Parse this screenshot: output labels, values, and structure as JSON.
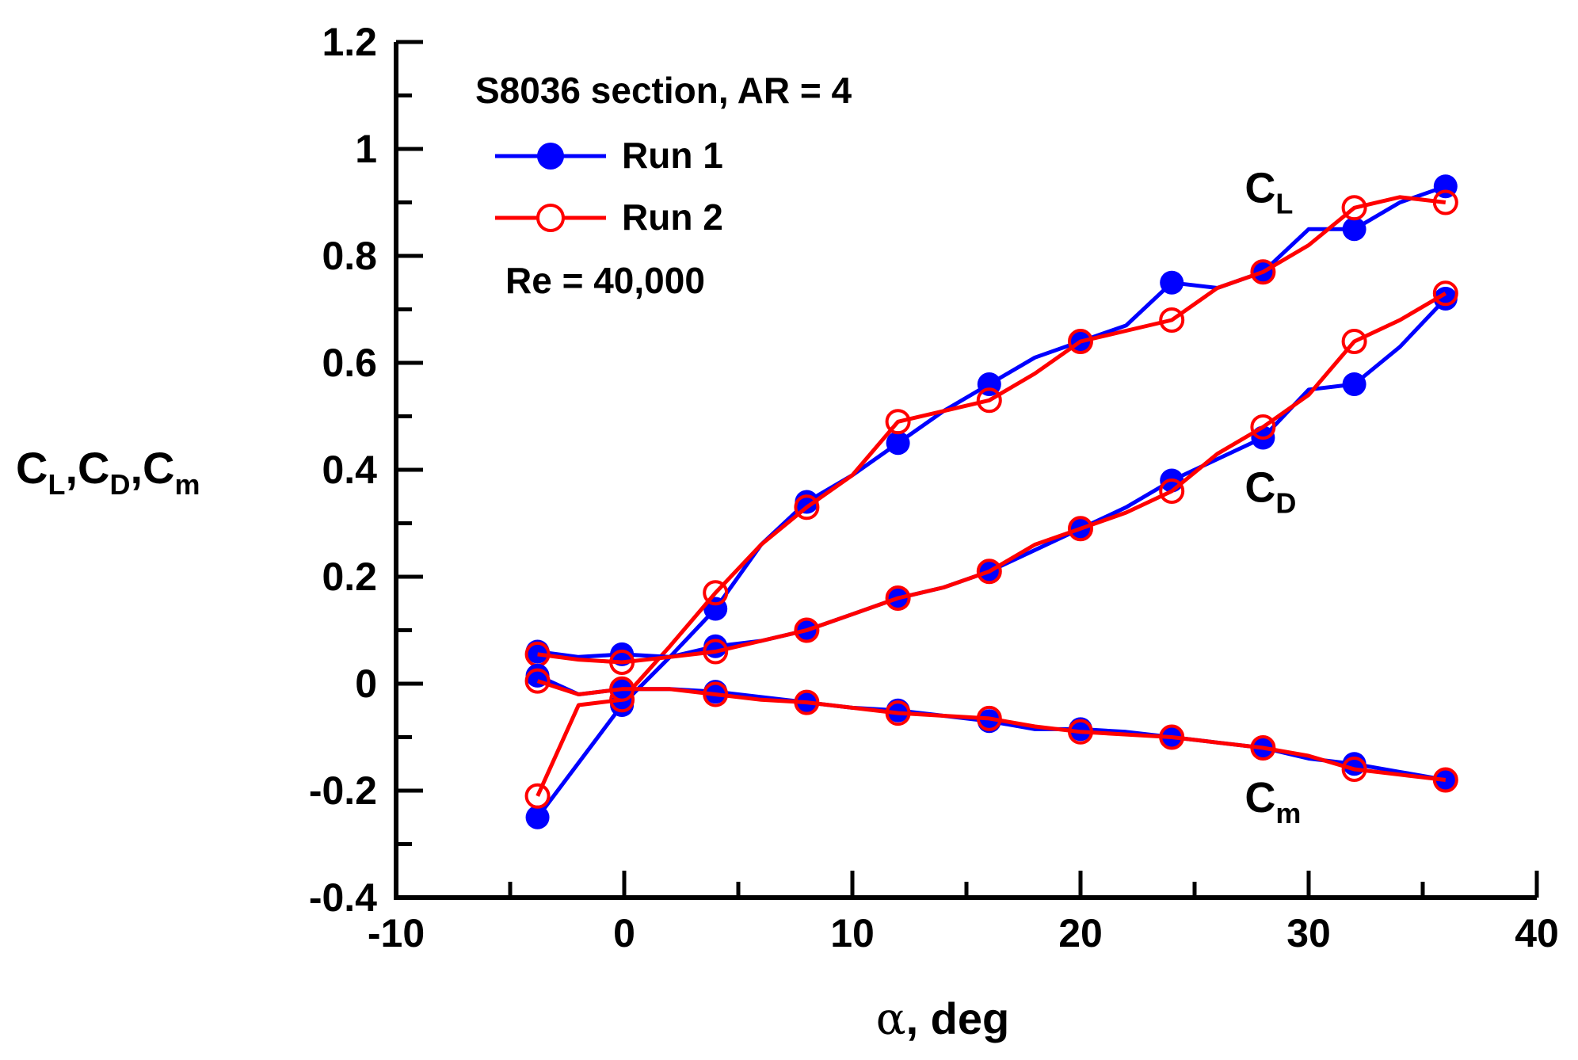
{
  "chart_data": {
    "type": "line",
    "title": "S8036 section, AR = 4",
    "annotation": "Re = 40,000",
    "xlabel_symbol": "α",
    "xlabel_text": ", deg",
    "ylabel_parts": [
      {
        "base": "C",
        "sub": "L",
        "sep": ","
      },
      {
        "base": "C",
        "sub": "D",
        "sep": ","
      },
      {
        "base": "C",
        "sub": "m",
        "sep": ""
      }
    ],
    "xlim": [
      -10,
      40
    ],
    "ylim": [
      -0.4,
      1.2
    ],
    "xticks": [
      -10,
      0,
      10,
      20,
      30,
      40
    ],
    "xtick_labels": [
      "-10",
      "0",
      "10",
      "20",
      "30",
      "40"
    ],
    "yticks": [
      -0.4,
      -0.2,
      0,
      0.2,
      0.4,
      0.6,
      0.8,
      1.0,
      1.2
    ],
    "ytick_labels": [
      "-0.4",
      "-0.2",
      "0",
      "0.2",
      "0.4",
      "0.6",
      "0.8",
      "1",
      "1.2"
    ],
    "legend": [
      {
        "name": "Run 1",
        "color": "#0000ff",
        "marker": "filled-circle"
      },
      {
        "name": "Run 2",
        "color": "#ff0000",
        "marker": "open-circle"
      }
    ],
    "curve_labels": [
      {
        "base": "C",
        "sub": "L",
        "x": 27.2,
        "y": 0.9
      },
      {
        "base": "C",
        "sub": "D",
        "x": 27.2,
        "y": 0.34
      },
      {
        "base": "C",
        "sub": "m",
        "x": 27.2,
        "y": -0.24
      }
    ],
    "series": [
      {
        "name": "Run 1",
        "coefficient": "CL",
        "color": "#0000ff",
        "marker": "filled",
        "line_x": [
          -3.8,
          -0.1,
          2,
          4,
          6,
          8,
          10,
          12,
          14,
          16,
          18,
          20,
          22,
          24,
          26,
          28,
          30,
          32,
          34,
          36
        ],
        "line_y": [
          -0.25,
          -0.04,
          0.05,
          0.14,
          0.26,
          0.34,
          0.39,
          0.45,
          0.51,
          0.56,
          0.61,
          0.64,
          0.67,
          0.75,
          0.74,
          0.77,
          0.85,
          0.85,
          0.9,
          0.93
        ],
        "marker_x": [
          -3.8,
          -0.1,
          4,
          8,
          12,
          16,
          20,
          24,
          28,
          32,
          36
        ],
        "marker_y": [
          -0.25,
          -0.04,
          0.14,
          0.34,
          0.45,
          0.56,
          0.64,
          0.75,
          0.77,
          0.85,
          0.93
        ]
      },
      {
        "name": "Run 2",
        "coefficient": "CL",
        "color": "#ff0000",
        "marker": "open",
        "line_x": [
          -3.8,
          -2,
          -0.1,
          2,
          4,
          6,
          8,
          10,
          12,
          14,
          16,
          18,
          20,
          22,
          24,
          26,
          28,
          30,
          32,
          34,
          36
        ],
        "line_y": [
          -0.21,
          -0.04,
          -0.03,
          0.07,
          0.17,
          0.26,
          0.33,
          0.39,
          0.49,
          0.51,
          0.53,
          0.58,
          0.64,
          0.66,
          0.68,
          0.74,
          0.77,
          0.82,
          0.89,
          0.91,
          0.9
        ],
        "marker_x": [
          -3.8,
          -0.1,
          4,
          8,
          12,
          16,
          20,
          24,
          28,
          32,
          36
        ],
        "marker_y": [
          -0.21,
          -0.03,
          0.17,
          0.33,
          0.49,
          0.53,
          0.64,
          0.68,
          0.77,
          0.89,
          0.9
        ]
      },
      {
        "name": "Run 1",
        "coefficient": "CD",
        "color": "#0000ff",
        "marker": "filled",
        "line_x": [
          -3.8,
          -2,
          -0.1,
          2,
          4,
          6,
          8,
          10,
          12,
          14,
          16,
          18,
          20,
          22,
          24,
          26,
          28,
          30,
          32,
          34,
          36
        ],
        "line_y": [
          0.06,
          0.05,
          0.055,
          0.05,
          0.07,
          0.08,
          0.1,
          0.13,
          0.16,
          0.18,
          0.21,
          0.25,
          0.29,
          0.33,
          0.38,
          0.42,
          0.46,
          0.55,
          0.56,
          0.63,
          0.72
        ],
        "marker_x": [
          -3.8,
          -0.1,
          4,
          8,
          12,
          16,
          20,
          24,
          28,
          32,
          36
        ],
        "marker_y": [
          0.06,
          0.055,
          0.07,
          0.1,
          0.16,
          0.21,
          0.29,
          0.38,
          0.46,
          0.56,
          0.72
        ]
      },
      {
        "name": "Run 2",
        "coefficient": "CD",
        "color": "#ff0000",
        "marker": "open",
        "line_x": [
          -3.8,
          -2,
          -0.1,
          2,
          4,
          6,
          8,
          10,
          12,
          14,
          16,
          18,
          20,
          22,
          24,
          26,
          28,
          30,
          32,
          34,
          36
        ],
        "line_y": [
          0.055,
          0.045,
          0.04,
          0.05,
          0.06,
          0.08,
          0.1,
          0.13,
          0.16,
          0.18,
          0.21,
          0.26,
          0.29,
          0.32,
          0.36,
          0.43,
          0.48,
          0.54,
          0.64,
          0.68,
          0.73
        ],
        "marker_x": [
          -3.8,
          -0.1,
          4,
          8,
          12,
          16,
          20,
          24,
          28,
          32,
          36
        ],
        "marker_y": [
          0.055,
          0.04,
          0.06,
          0.1,
          0.16,
          0.21,
          0.29,
          0.36,
          0.48,
          0.64,
          0.73
        ]
      },
      {
        "name": "Run 1",
        "coefficient": "Cm",
        "color": "#0000ff",
        "marker": "filled",
        "line_x": [
          -3.8,
          -2,
          -0.1,
          2,
          4,
          6,
          8,
          10,
          12,
          14,
          16,
          18,
          20,
          22,
          24,
          26,
          28,
          30,
          32,
          34,
          36
        ],
        "line_y": [
          0.015,
          -0.02,
          -0.01,
          -0.01,
          -0.015,
          -0.025,
          -0.035,
          -0.045,
          -0.05,
          -0.06,
          -0.07,
          -0.085,
          -0.085,
          -0.09,
          -0.1,
          -0.11,
          -0.12,
          -0.14,
          -0.15,
          -0.165,
          -0.18
        ],
        "marker_x": [
          -3.8,
          -0.1,
          4,
          8,
          12,
          16,
          20,
          24,
          28,
          32,
          36
        ],
        "marker_y": [
          0.015,
          -0.01,
          -0.015,
          -0.035,
          -0.05,
          -0.07,
          -0.085,
          -0.1,
          -0.12,
          -0.15,
          -0.18
        ]
      },
      {
        "name": "Run 2",
        "coefficient": "Cm",
        "color": "#ff0000",
        "marker": "open",
        "line_x": [
          -3.8,
          -2,
          -0.1,
          2,
          4,
          6,
          8,
          10,
          12,
          14,
          16,
          18,
          20,
          22,
          24,
          26,
          28,
          30,
          32,
          34,
          36
        ],
        "line_y": [
          0.005,
          -0.02,
          -0.01,
          -0.01,
          -0.02,
          -0.03,
          -0.035,
          -0.045,
          -0.055,
          -0.06,
          -0.065,
          -0.08,
          -0.09,
          -0.095,
          -0.1,
          -0.11,
          -0.12,
          -0.135,
          -0.16,
          -0.17,
          -0.18
        ],
        "marker_x": [
          -3.8,
          -0.1,
          4,
          8,
          12,
          16,
          20,
          24,
          28,
          32,
          36
        ],
        "marker_y": [
          0.005,
          -0.01,
          -0.02,
          -0.035,
          -0.055,
          -0.065,
          -0.09,
          -0.1,
          -0.12,
          -0.16,
          -0.18
        ]
      }
    ]
  }
}
